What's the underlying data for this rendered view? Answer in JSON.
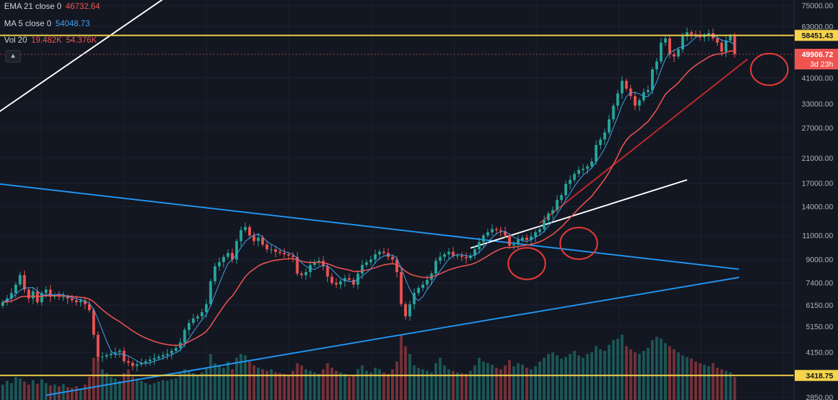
{
  "legend": {
    "ema": {
      "label": "EMA 21 close 0",
      "value": "46732.64",
      "color": "#ef5350"
    },
    "ma": {
      "label": "MA 5 close 0",
      "value": "54048.73",
      "color": "#42a5f5"
    },
    "vol": {
      "label": "Vol 20",
      "value1": "19.482K",
      "value2": "54.376K",
      "color": "#ef5350"
    }
  },
  "toggle_icon": "chevron-up-icon",
  "colors": {
    "background": "#131722",
    "up": "#26a69a",
    "down": "#ef5350",
    "ema": "#ef5350",
    "ma": "#42a5f5",
    "hline": "#f7d44b",
    "trendline_white": "#ffffff",
    "trendline_blue": "#2196f3",
    "trendline_red": "#c62828",
    "circle": "#e53935"
  },
  "chart_data": {
    "type": "candlestick",
    "y_scale": "log",
    "ylim": [
      2850,
      75000
    ],
    "y_ticks": [
      75000,
      63000,
      41000,
      33000,
      27000,
      21000,
      17000,
      14000,
      11000,
      9000,
      7400,
      6150,
      5150,
      4150,
      2850
    ],
    "price_tags": [
      {
        "label": "58451.43",
        "price": 58451.43,
        "style": "yellow"
      },
      {
        "label": "49906.72",
        "sublabel": "3d 23h",
        "price": 49906.72,
        "style": "red"
      },
      {
        "label": "3418.75",
        "price": 3418.75,
        "style": "yellow"
      }
    ],
    "horizontal_lines": [
      58451.43,
      3418.75
    ],
    "candles_close": [
      6300,
      6500,
      6800,
      7300,
      7900,
      7000,
      6500,
      6900,
      6300,
      6800,
      7000,
      6600,
      6700,
      6600,
      6600,
      6500,
      6400,
      6300,
      6400,
      6200,
      5900,
      4800,
      4000,
      4000,
      4050,
      4100,
      4150,
      4200,
      3850,
      3800,
      3700,
      3750,
      3800,
      3850,
      3900,
      3950,
      4000,
      4050,
      4100,
      4200,
      4300,
      4500,
      5000,
      5300,
      5500,
      5600,
      5800,
      6200,
      7500,
      8500,
      8800,
      9200,
      9500,
      9000,
      10500,
      11500,
      11800,
      11000,
      10500,
      10800,
      10200,
      9800,
      9800,
      9600,
      9500,
      9400,
      9300,
      9200,
      8000,
      7900,
      8100,
      8600,
      8800,
      8900,
      8500,
      7800,
      7400,
      7300,
      7500,
      7700,
      7600,
      7300,
      8000,
      8600,
      8800,
      9000,
      9400,
      9600,
      9500,
      9200,
      9000,
      8100,
      6200,
      5600,
      6200,
      6800,
      7100,
      7300,
      7600,
      8000,
      8900,
      9200,
      9400,
      9600,
      9300,
      9300,
      9200,
      9100,
      9300,
      9800,
      10400,
      11000,
      11300,
      11600,
      11500,
      11400,
      11000,
      10100,
      10200,
      10600,
      10800,
      10600,
      10900,
      11300,
      11600,
      12500,
      13200,
      13600,
      14800,
      15400,
      16900,
      17500,
      18400,
      19000,
      19200,
      19600,
      20400,
      23400,
      24500,
      26000,
      29000,
      32500,
      36000,
      40000,
      37500,
      35200,
      32500,
      34000,
      36400,
      37000,
      44000,
      47000,
      55000,
      57000,
      50000,
      49000,
      52000,
      58000,
      60000,
      59000,
      58500,
      57500,
      58400,
      59500,
      57000,
      55000,
      51000,
      56000,
      58000,
      50000
    ],
    "ma_period": 5,
    "ema_period": 21,
    "volume_note": "relative volumes per candle",
    "volumes": [
      20,
      25,
      22,
      30,
      28,
      24,
      20,
      26,
      21,
      27,
      22,
      19,
      20,
      18,
      21,
      17,
      16,
      18,
      15,
      20,
      30,
      55,
      60,
      40,
      35,
      30,
      28,
      25,
      35,
      40,
      30,
      28,
      25,
      22,
      20,
      22,
      24,
      26,
      25,
      27,
      28,
      35,
      40,
      38,
      35,
      33,
      36,
      42,
      60,
      48,
      45,
      42,
      50,
      40,
      55,
      60,
      58,
      50,
      45,
      42,
      40,
      38,
      40,
      36,
      35,
      34,
      33,
      38,
      48,
      45,
      40,
      38,
      36,
      34,
      40,
      48,
      42,
      38,
      36,
      34,
      30,
      32,
      40,
      45,
      38,
      36,
      42,
      40,
      36,
      34,
      40,
      50,
      85,
      70,
      60,
      45,
      42,
      40,
      38,
      36,
      48,
      55,
      45,
      40,
      38,
      36,
      35,
      34,
      38,
      45,
      55,
      50,
      48,
      46,
      42,
      40,
      45,
      52,
      44,
      48,
      46,
      42,
      40,
      44,
      50,
      55,
      60,
      62,
      58,
      54,
      56,
      60,
      64,
      58,
      55,
      60,
      62,
      70,
      66,
      64,
      72,
      78,
      80,
      85,
      70,
      66,
      62,
      60,
      64,
      68,
      78,
      82,
      80,
      74,
      70,
      66,
      62,
      58,
      56,
      54,
      50,
      48,
      46,
      44,
      48,
      42,
      40,
      38,
      36,
      30
    ],
    "trendlines": [
      {
        "color": "white",
        "from": {
          "bar": -2,
          "price": 30000
        },
        "to": {
          "bar": 60,
          "price": 140000
        }
      },
      {
        "color": "blue",
        "from": {
          "bar": -2,
          "price": 17000
        },
        "to": {
          "bar": 170,
          "price": 8300
        }
      },
      {
        "color": "blue",
        "from": {
          "bar": 10,
          "price": 2900
        },
        "to": {
          "bar": 170,
          "price": 7750
        }
      },
      {
        "color": "white",
        "from": {
          "bar": 108,
          "price": 9900
        },
        "to": {
          "bar": 158,
          "price": 17500
        }
      },
      {
        "color": "red",
        "from": {
          "bar": 124,
          "price": 12200
        },
        "to": {
          "bar": 172,
          "price": 48000
        }
      }
    ],
    "annotations": [
      {
        "type": "circle",
        "bar": 121,
        "price": 8700
      },
      {
        "type": "circle",
        "bar": 133,
        "price": 10300
      },
      {
        "type": "circle",
        "bar": 177,
        "price": 44000
      }
    ]
  }
}
